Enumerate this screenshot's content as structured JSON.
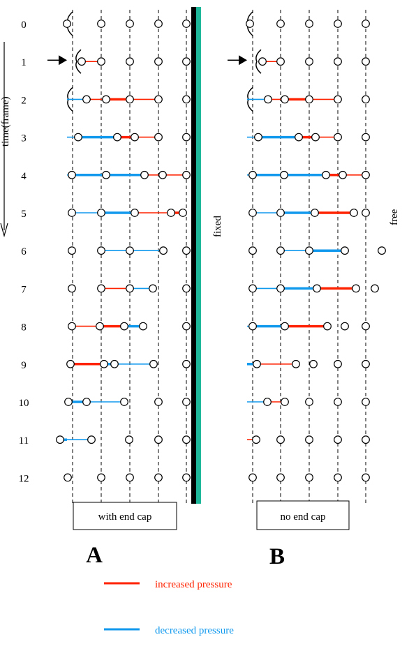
{
  "axis_label": "time(frame)",
  "frames": [
    "0",
    "1",
    "2",
    "3",
    "4",
    "5",
    "6",
    "7",
    "8",
    "9",
    "10",
    "11",
    "12"
  ],
  "panel_a": {
    "caption": "with end cap",
    "letter": "A",
    "boundary_label": "fixed",
    "boundary_color": "#1fb89a",
    "particles": [
      [
        96,
        145,
        186,
        227,
        267
      ],
      [
        117,
        145,
        186,
        227,
        267
      ],
      [
        124,
        152,
        186,
        227,
        267
      ],
      [
        112,
        168,
        193,
        227,
        267
      ],
      [
        103,
        152,
        207,
        233,
        267
      ],
      [
        103,
        145,
        193,
        245,
        262
      ],
      [
        103,
        145,
        186,
        234,
        267
      ],
      [
        103,
        145,
        186,
        219,
        267
      ],
      [
        103,
        143,
        178,
        205,
        267
      ],
      [
        101,
        149,
        164,
        220,
        267
      ],
      [
        98,
        124,
        178,
        227,
        267
      ],
      [
        86,
        131,
        185,
        227,
        267
      ],
      [
        97,
        145,
        186,
        227,
        267
      ]
    ],
    "segments": [
      [
        [],
        [],
        [],
        [],
        []
      ],
      [
        [],
        [
          "r"
        ],
        [],
        [],
        []
      ],
      [
        [
          "b"
        ],
        [
          "r"
        ],
        [
          "R"
        ],
        [
          "r"
        ],
        []
      ],
      [
        [
          "b"
        ],
        [
          "B"
        ],
        [
          "R"
        ],
        [
          "r"
        ],
        []
      ],
      [
        [
          "b"
        ],
        [
          "B"
        ],
        [
          "B"
        ],
        [
          "r"
        ],
        [
          "r"
        ]
      ],
      [
        [],
        [
          "b"
        ],
        [
          "B"
        ],
        [
          "r"
        ],
        [
          "R"
        ]
      ],
      [
        [],
        [],
        [
          "b"
        ],
        [
          "b"
        ],
        []
      ],
      [
        [],
        [],
        [
          "r"
        ],
        [
          "b"
        ],
        []
      ],
      [
        [],
        [
          "r"
        ],
        [
          "R"
        ],
        [
          "B"
        ],
        []
      ],
      [
        [
          "r"
        ],
        [
          "R"
        ],
        [
          "B"
        ],
        [
          "b"
        ],
        []
      ],
      [
        [
          "R"
        ],
        [
          "B"
        ],
        [
          "b"
        ],
        [],
        []
      ],
      [
        [
          "B"
        ],
        [
          "b"
        ],
        [],
        [],
        []
      ],
      [
        [
          "b"
        ],
        [],
        [],
        [],
        []
      ]
    ]
  },
  "panel_b": {
    "caption": "no end cap",
    "letter": "B",
    "boundary_label": "free",
    "particles": [
      [
        358,
        402,
        443,
        484,
        524
      ],
      [
        376,
        402,
        443,
        484,
        524
      ],
      [
        384,
        408,
        443,
        484,
        524
      ],
      [
        370,
        428,
        452,
        484,
        524
      ],
      [
        362,
        407,
        467,
        491,
        524
      ],
      [
        362,
        402,
        451,
        507,
        524
      ],
      [
        362,
        402,
        443,
        494,
        547
      ],
      [
        362,
        402,
        454,
        510,
        537
      ],
      [
        362,
        408,
        469,
        494,
        524
      ],
      [
        368,
        424,
        449,
        484,
        524
      ],
      [
        383,
        408,
        443,
        484,
        524
      ],
      [
        367,
        402,
        443,
        484,
        524
      ],
      [
        362,
        402,
        443,
        484,
        524
      ]
    ],
    "segments": [
      [
        [],
        [],
        [],
        [],
        []
      ],
      [
        [],
        [
          "r"
        ],
        [],
        [],
        []
      ],
      [
        [
          "b"
        ],
        [
          "r"
        ],
        [
          "R"
        ],
        [
          "r"
        ],
        []
      ],
      [
        [
          "b"
        ],
        [
          "B"
        ],
        [
          "R"
        ],
        [
          "r"
        ],
        []
      ],
      [
        [
          "b"
        ],
        [
          "B"
        ],
        [
          "B"
        ],
        [
          "R"
        ],
        [
          "r"
        ]
      ],
      [
        [],
        [
          "b"
        ],
        [
          "B"
        ],
        [
          "R"
        ],
        []
      ],
      [
        [],
        [],
        [
          "b"
        ],
        [
          "B"
        ],
        []
      ],
      [
        [],
        [
          "b"
        ],
        [
          "B"
        ],
        [
          "R"
        ],
        []
      ],
      [
        [
          "b"
        ],
        [
          "B"
        ],
        [
          "R"
        ],
        [],
        []
      ],
      [
        [
          "B"
        ],
        [
          "r"
        ],
        [],
        [],
        []
      ],
      [
        [
          "b"
        ],
        [
          "r"
        ],
        [],
        [],
        []
      ],
      [
        [
          "r"
        ],
        [],
        [],
        [],
        []
      ],
      [
        [],
        [],
        [],
        [],
        []
      ]
    ]
  },
  "legend": [
    {
      "key": "r",
      "label": "increased pressure",
      "color": "#ff2200"
    },
    {
      "key": "b",
      "label": "decreased pressure",
      "color": "#1199ee"
    }
  ]
}
